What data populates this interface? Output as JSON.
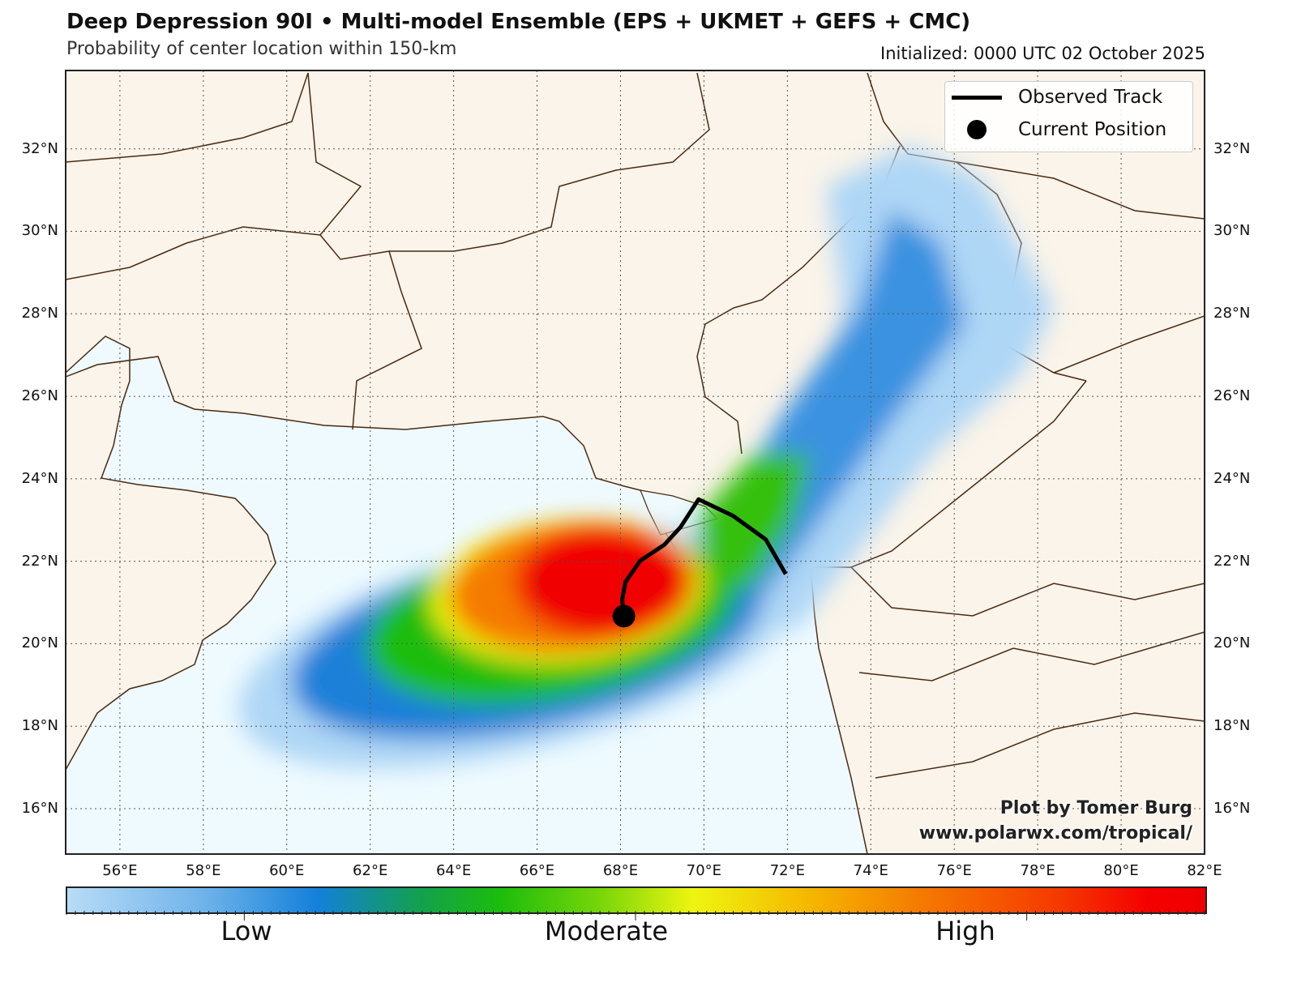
{
  "header": {
    "title": "Deep Depression 90I • Multi-model Ensemble (EPS + UKMET + GEFS + CMC)",
    "subtitle": "Probability of center location within 150-km",
    "initialized": "Initialized: 0000 UTC 02 October 2025"
  },
  "axes": {
    "lat_labels": [
      "32°N",
      "30°N",
      "28°N",
      "26°N",
      "24°N",
      "22°N",
      "20°N",
      "18°N",
      "16°N"
    ],
    "lat_values": [
      32,
      30,
      28,
      26,
      24,
      22,
      20,
      18,
      16
    ],
    "lon_labels": [
      "56°E",
      "58°E",
      "60°E",
      "62°E",
      "64°E",
      "66°E",
      "68°E",
      "70°E",
      "72°E",
      "74°E",
      "76°E",
      "78°E",
      "80°E",
      "82°E"
    ],
    "lon_values": [
      56,
      58,
      60,
      62,
      64,
      66,
      68,
      70,
      72,
      74,
      76,
      78,
      80,
      82
    ],
    "lon_range": [
      54.7,
      82
    ],
    "lat_range": [
      14.9,
      33.9
    ]
  },
  "legend": {
    "observed_track": "Observed Track",
    "current_position": "Current Position"
  },
  "attribution": {
    "line1": "Plot by Tomer Burg",
    "line2": "www.polarwx.com/tropical/"
  },
  "colorbar": {
    "labels": [
      "Low",
      "Moderate",
      "High"
    ],
    "colors": [
      "#b8dcf6",
      "#1380da",
      "#1cbd0c",
      "#eef510",
      "#f57a00",
      "#ee0000"
    ]
  },
  "map_data": {
    "observed_track": [
      [
        71.96,
        21.69
      ],
      [
        71.48,
        22.53
      ],
      [
        70.7,
        23.1
      ],
      [
        69.87,
        23.5
      ],
      [
        69.44,
        22.83
      ],
      [
        69.05,
        22.4
      ],
      [
        68.47,
        22.01
      ],
      [
        68.12,
        21.5
      ],
      [
        68.04,
        21.07
      ],
      [
        68.08,
        20.67
      ]
    ],
    "current_position": [
      68.08,
      20.67
    ]
  }
}
